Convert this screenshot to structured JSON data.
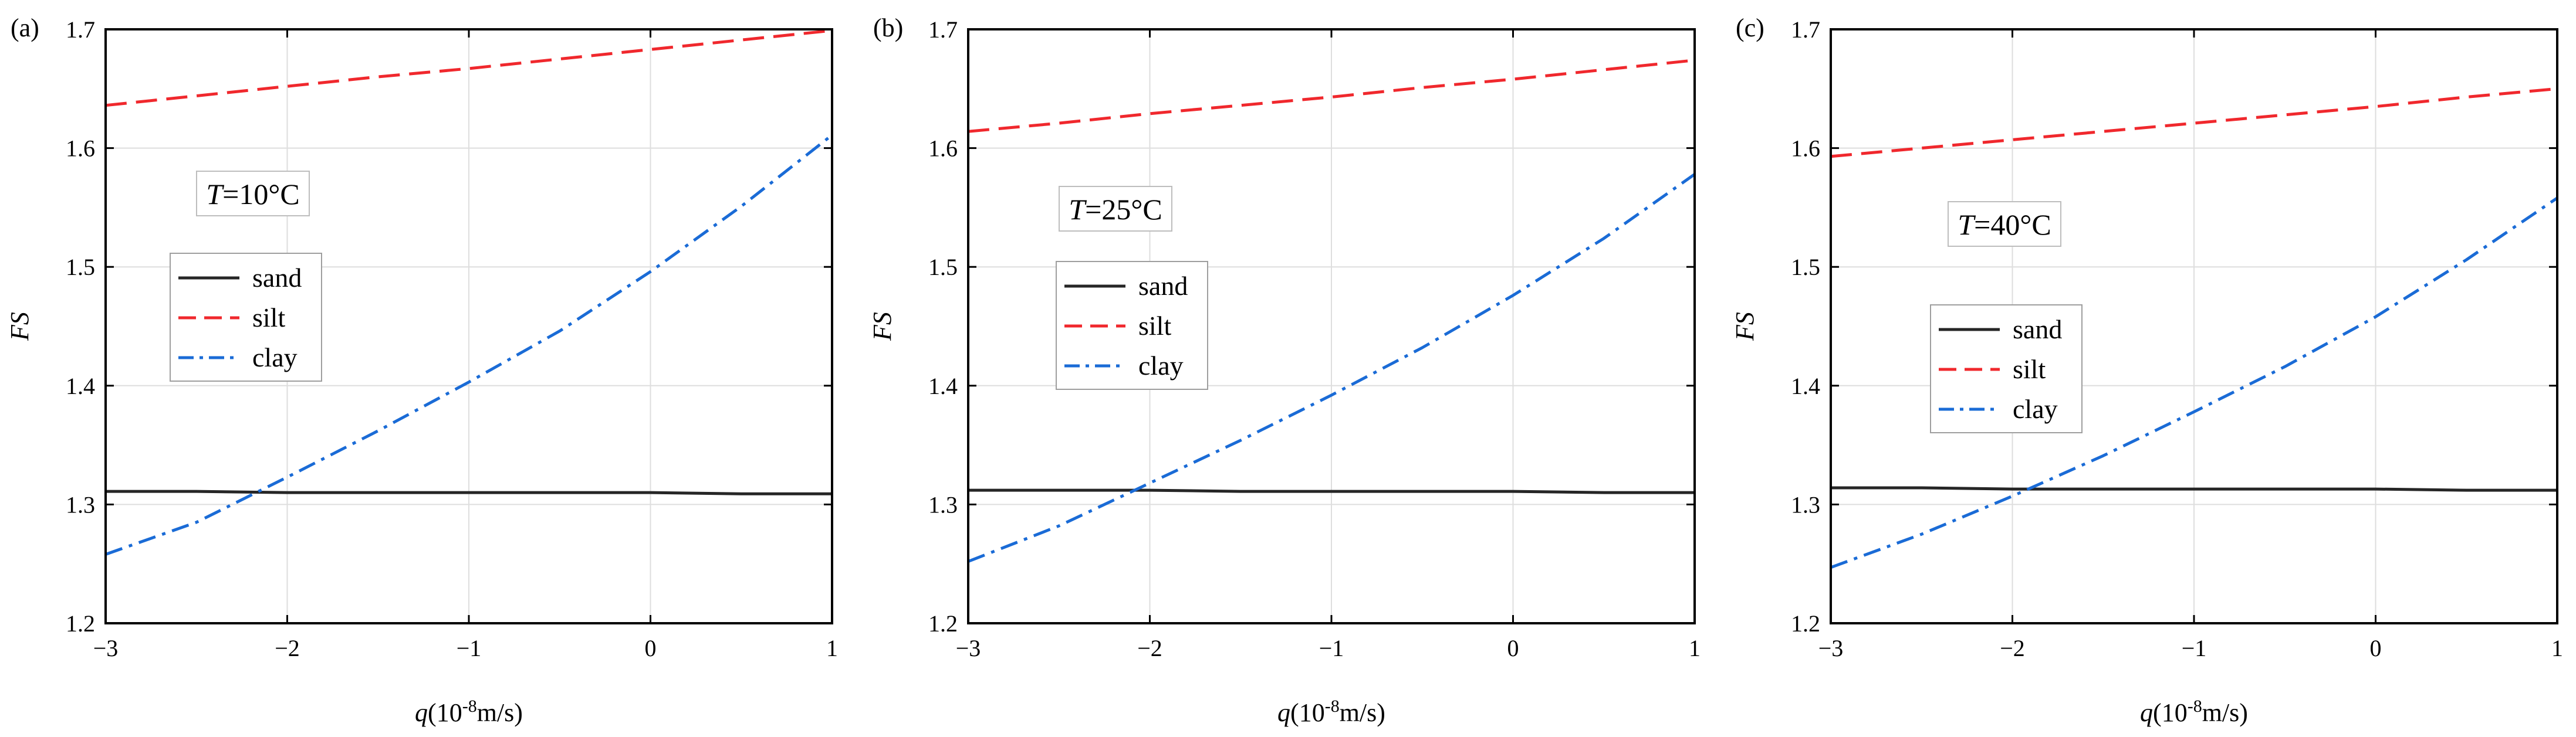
{
  "chart_data": [
    {
      "type": "line",
      "panel_label": "(a)",
      "annotation": {
        "var": "T",
        "text": "=10°C"
      },
      "xlabel": {
        "var": "q",
        "text": "(10",
        "sup": "-8",
        "unit": "m/s)"
      },
      "ylabel": "FS",
      "xlim": [
        -3,
        1
      ],
      "ylim": [
        1.2,
        1.7
      ],
      "x_ticks": [
        -3,
        -2,
        -1,
        0,
        1
      ],
      "y_ticks": [
        1.2,
        1.3,
        1.4,
        1.5,
        1.6,
        1.7
      ],
      "x_tick_labels": [
        "−3",
        "−2",
        "−1",
        "0",
        "1"
      ],
      "y_tick_labels": [
        "1.2",
        "1.3",
        "1.4",
        "1.5",
        "1.6",
        "1.7"
      ],
      "grid": true,
      "legend_position": "middle-left",
      "x": [
        -3,
        -2.5,
        -2,
        -1.5,
        -1,
        -0.5,
        0,
        0.5,
        1
      ],
      "series": [
        {
          "name": "sand",
          "style": "solid",
          "values": [
            1.311,
            1.311,
            1.31,
            1.31,
            1.31,
            1.31,
            1.31,
            1.309,
            1.309
          ]
        },
        {
          "name": "silt",
          "style": "dashed",
          "values": [
            1.636,
            1.644,
            1.652,
            1.66,
            1.667,
            1.675,
            1.683,
            1.691,
            1.699
          ]
        },
        {
          "name": "clay",
          "style": "dashdot",
          "values": [
            1.258,
            1.285,
            1.323,
            1.362,
            1.403,
            1.446,
            1.496,
            1.551,
            1.611
          ]
        }
      ]
    },
    {
      "type": "line",
      "panel_label": "(b)",
      "annotation": {
        "var": "T",
        "text": "=25°C"
      },
      "xlabel": {
        "var": "q",
        "text": "(10",
        "sup": "-8",
        "unit": "m/s)"
      },
      "ylabel": "FS",
      "xlim": [
        -3,
        1
      ],
      "ylim": [
        1.2,
        1.7
      ],
      "x_ticks": [
        -3,
        -2,
        -1,
        0,
        1
      ],
      "y_ticks": [
        1.2,
        1.3,
        1.4,
        1.5,
        1.6,
        1.7
      ],
      "x_tick_labels": [
        "−3",
        "−2",
        "−1",
        "0",
        "1"
      ],
      "y_tick_labels": [
        "1.2",
        "1.3",
        "1.4",
        "1.5",
        "1.6",
        "1.7"
      ],
      "grid": true,
      "legend_position": "middle-left",
      "x": [
        -3,
        -2.5,
        -2,
        -1.5,
        -1,
        -0.5,
        0,
        0.5,
        1
      ],
      "series": [
        {
          "name": "sand",
          "style": "solid",
          "values": [
            1.312,
            1.312,
            1.312,
            1.311,
            1.311,
            1.311,
            1.311,
            1.31,
            1.31
          ]
        },
        {
          "name": "silt",
          "style": "dashed",
          "values": [
            1.614,
            1.621,
            1.629,
            1.636,
            1.643,
            1.651,
            1.658,
            1.666,
            1.674
          ]
        },
        {
          "name": "clay",
          "style": "dashdot",
          "values": [
            1.252,
            1.282,
            1.318,
            1.354,
            1.392,
            1.432,
            1.476,
            1.524,
            1.578
          ]
        }
      ]
    },
    {
      "type": "line",
      "panel_label": "(c)",
      "annotation": {
        "var": "T",
        "text": "=40°C"
      },
      "xlabel": {
        "var": "q",
        "text": "(10",
        "sup": "-8",
        "unit": "m/s)"
      },
      "ylabel": "FS",
      "xlim": [
        -3,
        1
      ],
      "ylim": [
        1.2,
        1.7
      ],
      "x_ticks": [
        -3,
        -2,
        -1,
        0,
        1
      ],
      "y_ticks": [
        1.2,
        1.3,
        1.4,
        1.5,
        1.6,
        1.7
      ],
      "x_tick_labels": [
        "−3",
        "−2",
        "−1",
        "0",
        "1"
      ],
      "y_tick_labels": [
        "1.2",
        "1.3",
        "1.4",
        "1.5",
        "1.6",
        "1.7"
      ],
      "grid": true,
      "legend_position": "middle-left",
      "x": [
        -3,
        -2.5,
        -2,
        -1.5,
        -1,
        -0.5,
        0,
        0.5,
        1
      ],
      "series": [
        {
          "name": "sand",
          "style": "solid",
          "values": [
            1.314,
            1.314,
            1.313,
            1.313,
            1.313,
            1.313,
            1.313,
            1.312,
            1.312
          ]
        },
        {
          "name": "silt",
          "style": "dashed",
          "values": [
            1.593,
            1.6,
            1.607,
            1.614,
            1.621,
            1.628,
            1.635,
            1.643,
            1.65
          ]
        },
        {
          "name": "clay",
          "style": "dashdot",
          "values": [
            1.247,
            1.275,
            1.307,
            1.341,
            1.378,
            1.416,
            1.458,
            1.506,
            1.558
          ]
        }
      ]
    }
  ],
  "colors": {
    "sand": "#262626",
    "silt": "#f0282d",
    "clay": "#1a6bd6",
    "grid": "#dedede",
    "axis": "#000000"
  }
}
